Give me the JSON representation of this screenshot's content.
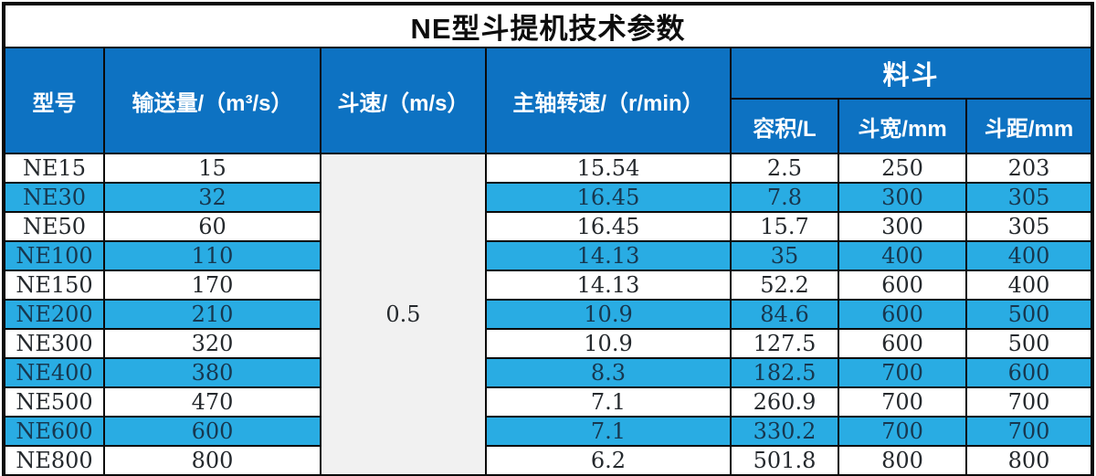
{
  "title": "NE型斗提机技术参数",
  "table": {
    "columns": {
      "model": "型号",
      "capacity": "输送量/（m³/s）",
      "bucket_speed": "斗速/（m/s）",
      "shaft_speed": "主轴转速/（r/min）",
      "bucket_group": "料斗",
      "volume": "容积/L",
      "bucket_width": "斗宽/mm",
      "bucket_pitch": "斗距/mm"
    },
    "bucket_speed_shared_value": "0.5",
    "rows": [
      {
        "model": "NE15",
        "capacity": "15",
        "shaft_speed": "15.54",
        "volume": "2.5",
        "width": "250",
        "pitch": "203"
      },
      {
        "model": "NE30",
        "capacity": "32",
        "shaft_speed": "16.45",
        "volume": "7.8",
        "width": "300",
        "pitch": "305"
      },
      {
        "model": "NE50",
        "capacity": "60",
        "shaft_speed": "16.45",
        "volume": "15.7",
        "width": "300",
        "pitch": "305"
      },
      {
        "model": "NE100",
        "capacity": "110",
        "shaft_speed": "14.13",
        "volume": "35",
        "width": "400",
        "pitch": "400"
      },
      {
        "model": "NE150",
        "capacity": "170",
        "shaft_speed": "14.13",
        "volume": "52.2",
        "width": "600",
        "pitch": "400"
      },
      {
        "model": "NE200",
        "capacity": "210",
        "shaft_speed": "10.9",
        "volume": "84.6",
        "width": "600",
        "pitch": "500"
      },
      {
        "model": "NE300",
        "capacity": "320",
        "shaft_speed": "10.9",
        "volume": "127.5",
        "width": "600",
        "pitch": "500"
      },
      {
        "model": "NE400",
        "capacity": "380",
        "shaft_speed": "8.3",
        "volume": "182.5",
        "width": "700",
        "pitch": "600"
      },
      {
        "model": "NE500",
        "capacity": "470",
        "shaft_speed": "7.1",
        "volume": "260.9",
        "width": "700",
        "pitch": "700"
      },
      {
        "model": "NE600",
        "capacity": "600",
        "shaft_speed": "7.1",
        "volume": "330.2",
        "width": "700",
        "pitch": "700"
      },
      {
        "model": "NE800",
        "capacity": "800",
        "shaft_speed": "6.2",
        "volume": "501.8",
        "width": "800",
        "pitch": "800"
      }
    ]
  },
  "colors": {
    "header_blue": "#0d72c2",
    "stripe_blue": "#29ace3",
    "merged_cell_gray": "#f1f1f1",
    "border_black": "#0b0b0b",
    "title_text": "#0d0d0d",
    "header_text": "#ffffff"
  },
  "chart_data": {
    "type": "table",
    "title": "NE型斗提机技术参数",
    "columns": [
      "型号",
      "输送量/（m³/s）",
      "斗速/（m/s）",
      "主轴转速/（r/min）",
      "料斗 容积/L",
      "料斗 斗宽/mm",
      "料斗 斗距/mm"
    ],
    "rows": [
      [
        "NE15",
        "15",
        "0.5",
        "15.54",
        "2.5",
        "250",
        "203"
      ],
      [
        "NE30",
        "32",
        "0.5",
        "16.45",
        "7.8",
        "300",
        "305"
      ],
      [
        "NE50",
        "60",
        "0.5",
        "16.45",
        "15.7",
        "300",
        "305"
      ],
      [
        "NE100",
        "110",
        "0.5",
        "14.13",
        "35",
        "400",
        "400"
      ],
      [
        "NE150",
        "170",
        "0.5",
        "14.13",
        "52.2",
        "600",
        "400"
      ],
      [
        "NE200",
        "210",
        "0.5",
        "10.9",
        "84.6",
        "600",
        "500"
      ],
      [
        "NE300",
        "320",
        "0.5",
        "10.9",
        "127.5",
        "600",
        "500"
      ],
      [
        "NE400",
        "380",
        "0.5",
        "8.3",
        "182.5",
        "700",
        "600"
      ],
      [
        "NE500",
        "470",
        "0.5",
        "7.1",
        "260.9",
        "700",
        "700"
      ],
      [
        "NE600",
        "600",
        "0.5",
        "7.1",
        "330.2",
        "700",
        "700"
      ],
      [
        "NE800",
        "800",
        "0.5",
        "6.2",
        "501.8",
        "800",
        "800"
      ]
    ],
    "notes": "斗速/（m/s）column is one merged light-gray cell containing 0.5 for all 11 rows; rows alternate white and blue (#29ace3) striping"
  }
}
